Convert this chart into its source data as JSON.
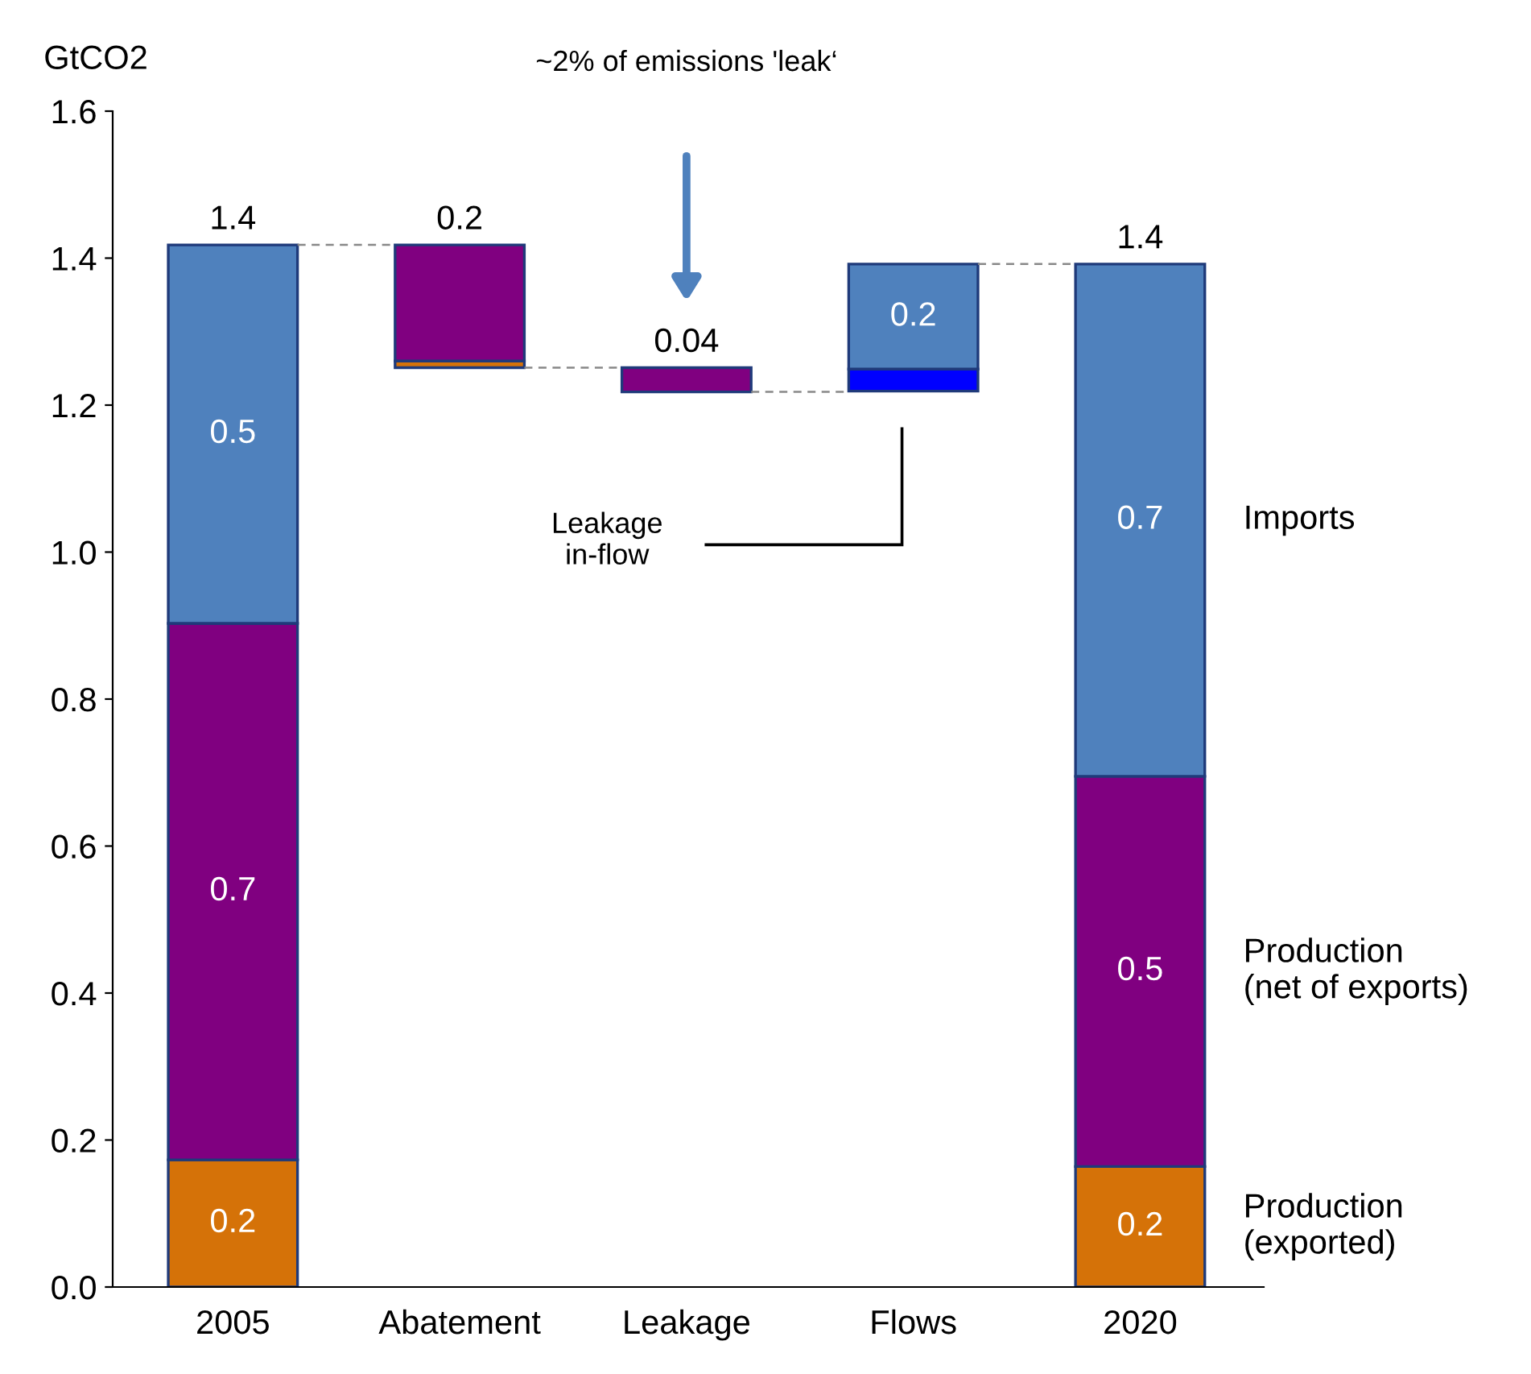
{
  "chart_data": {
    "type": "bar",
    "ylabel": "GtCO2",
    "categories": [
      "2005",
      "Abatement",
      "Leakage",
      "Flows",
      "2020"
    ],
    "series": [
      {
        "name": "Production\n(exported)",
        "color": "#d57208",
        "base": [
          0,
          1.251,
          null,
          null,
          0
        ],
        "values": [
          0.173,
          0.009,
          null,
          null,
          0.164
        ],
        "value_labels": [
          "0.2",
          null,
          null,
          null,
          "0.2"
        ]
      },
      {
        "name": "Production\n(net of exports)",
        "color": "#800080",
        "base": [
          0.173,
          1.26,
          1.218,
          null,
          0.164
        ],
        "values": [
          0.73,
          0.158,
          0.033,
          null,
          0.531
        ],
        "value_labels": [
          "0.7",
          null,
          null,
          null,
          "0.5"
        ]
      },
      {
        "color": "#0000ff",
        "base": [
          null,
          null,
          null,
          1.219,
          null
        ],
        "values": [
          null,
          null,
          null,
          0.03,
          null
        ]
      },
      {
        "name": "Imports",
        "color": "#4f81bd",
        "base": [
          0.903,
          null,
          null,
          1.249,
          0.695
        ],
        "values": [
          0.515,
          null,
          null,
          0.143,
          0.697
        ],
        "value_labels": [
          "0.5",
          null,
          null,
          null,
          "0.7"
        ]
      }
    ],
    "totals": [
      "1.4",
      "0.2",
      "0.04",
      null,
      "1.4"
    ],
    "annotations": [
      "~2% of emissions 'leak‘",
      "Leakage\nin-flow",
      "0.2"
    ],
    "ylim": [
      0,
      1.6
    ],
    "yticks": [
      {
        "value": 0,
        "label": "0.0"
      },
      0.2,
      0.4,
      0.6,
      0.8,
      {
        "value": 1,
        "label": "1.0"
      },
      1.2,
      1.4,
      1.6
    ],
    "grid": false,
    "legend": false
  }
}
